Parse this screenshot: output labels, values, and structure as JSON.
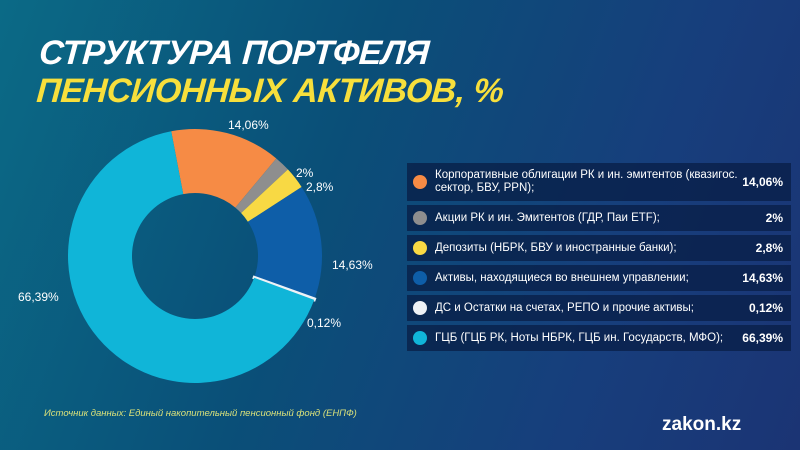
{
  "title": {
    "line1": "СТРУКТУРА ПОРТФЕЛЯ",
    "line2": "ПЕНСИОННЫХ АКТИВОВ, %"
  },
  "chart_data": {
    "type": "pie",
    "donut": true,
    "title": "СТРУКТУРА ПОРТФЕЛЯ ПЕНСИОННЫХ АКТИВОВ, %",
    "categories": [
      "Корпоративные облигации РК и ин. эмитентов (квазигос. сектор, БВУ, PPN);",
      "Акции РК и ин. Эмитентов (ГДР, Паи ETF);",
      "Депозиты (НБРК, БВУ и иностранные банки);",
      "Активы, находящиеся во внешнем управлении;",
      "ДС и Остатки на счетах, РЕПО и прочие активы;",
      "ГЦБ (ГЦБ РК, Ноты НБРК, ГЦБ ин. Государств, МФО);"
    ],
    "values": [
      14.06,
      2,
      2.8,
      14.63,
      0.12,
      66.39
    ],
    "labels": [
      "14,06%",
      "2%",
      "2,8%",
      "14,63%",
      "0,12%",
      "66,39%"
    ],
    "colors": [
      "#f68b45",
      "#8e8e8e",
      "#f8d944",
      "#0e5ea8",
      "#eef2f6",
      "#10b5d8"
    ],
    "legend": "right"
  },
  "source": "Источник данных: Единый накопительный пенсионный фонд (ЕНПФ)",
  "logo": "zakon.kz"
}
